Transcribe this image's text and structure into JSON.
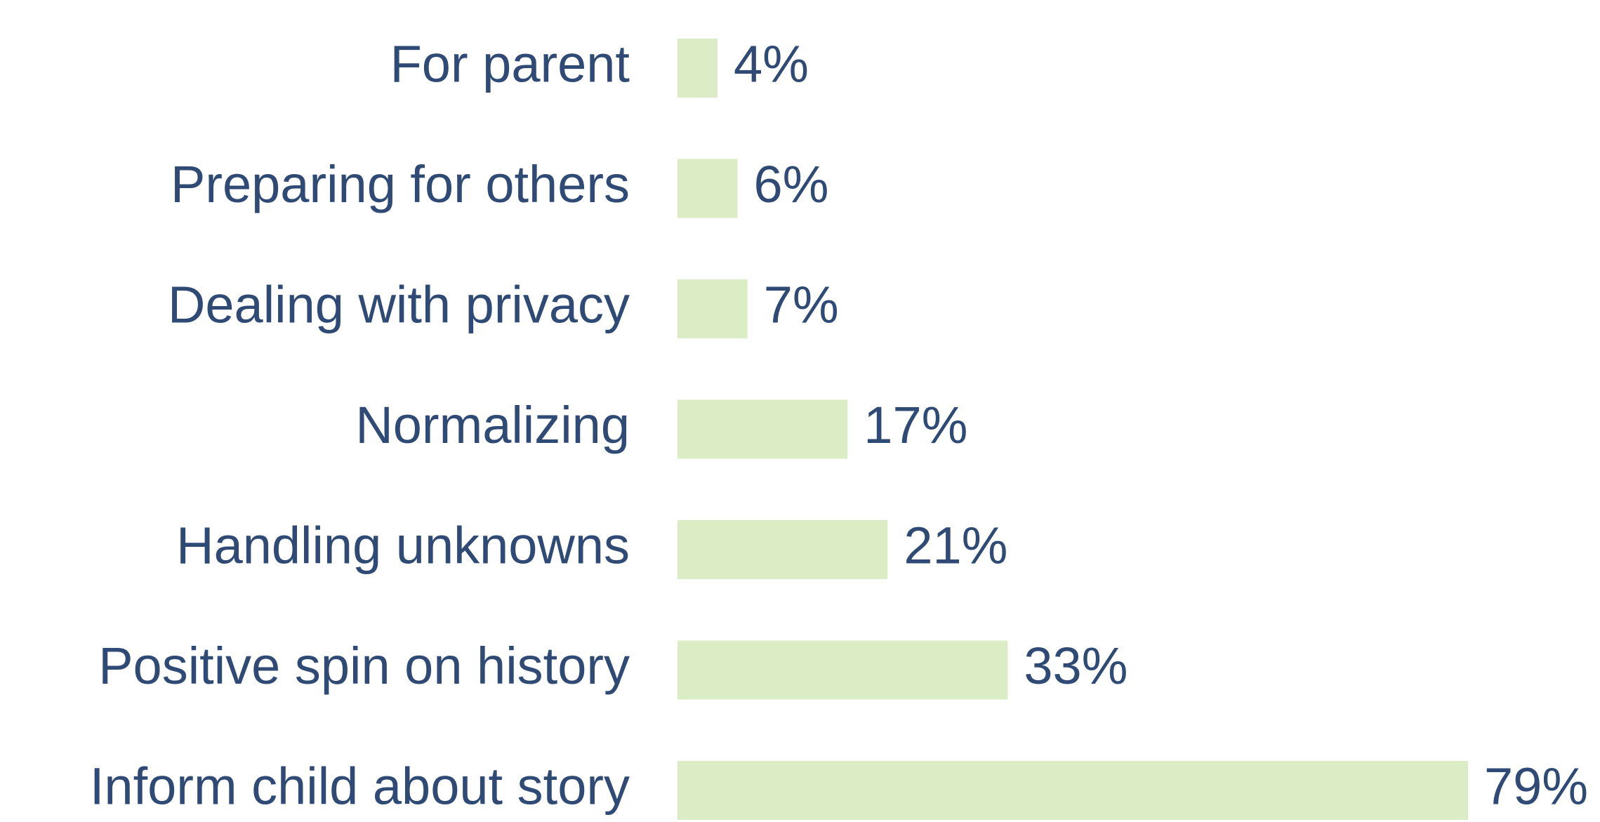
{
  "chart_data": {
    "type": "bar",
    "orientation": "horizontal",
    "categories": [
      "For parent",
      "Preparing for others",
      "Dealing with privacy",
      "Normalizing",
      "Handling unknowns",
      "Positive spin on history",
      "Inform child about story"
    ],
    "values": [
      4,
      6,
      7,
      17,
      21,
      33,
      79
    ],
    "value_labels": [
      "4%",
      "6%",
      "7%",
      "17%",
      "21%",
      "33%",
      "79%"
    ],
    "color": "#dcedc5"
  }
}
